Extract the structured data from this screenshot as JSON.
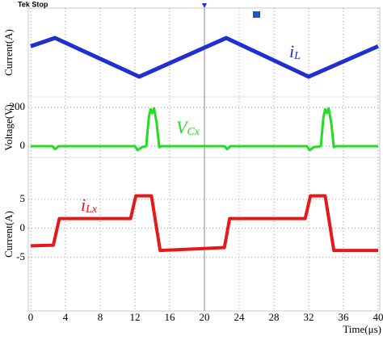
{
  "scope_status": "Tek Stop",
  "chart_data": [
    {
      "type": "line",
      "ylabel": "Current(A)",
      "label": {
        "main": "i",
        "sub": "L"
      },
      "color": "#1f2fd0",
      "xlim": [
        0,
        40
      ],
      "ylim": [
        -10,
        10
      ],
      "x": [
        0,
        2.8,
        12.5,
        22.5,
        32,
        40
      ],
      "values": [
        2.7,
        4.7,
        -4.7,
        4.7,
        -4.7,
        2.7
      ]
    },
    {
      "type": "line",
      "ylabel": "Voltage(V)",
      "label": {
        "main": "V",
        "sub": "Cx"
      },
      "color": "#22dd22",
      "xlim": [
        0,
        40
      ],
      "ylim": [
        -58,
        254
      ],
      "yticks": [
        0,
        200
      ],
      "x": [
        0,
        2.5,
        2.8,
        3.2,
        12.0,
        12.3,
        12.8,
        13.3,
        13.6,
        13.8,
        14.0,
        14.2,
        14.5,
        14.8,
        15.0,
        22.3,
        22.6,
        23.0,
        31.8,
        32.1,
        32.6,
        33.4,
        33.7,
        33.9,
        34.1,
        34.3,
        34.6,
        34.9,
        35.1,
        40
      ],
      "values": [
        0,
        0,
        -15,
        0,
        0,
        -20,
        -5,
        0,
        150,
        190,
        170,
        195,
        120,
        -5,
        0,
        0,
        -15,
        0,
        0,
        -20,
        -5,
        0,
        150,
        190,
        170,
        195,
        120,
        -5,
        0,
        0
      ]
    },
    {
      "type": "line",
      "ylabel": "Current(A)",
      "label": {
        "main": "i",
        "sub": "Lx"
      },
      "color": "#e81818",
      "xlim": [
        0,
        40
      ],
      "ylim": [
        -14.2,
        12.2
      ],
      "yticks": [
        -5,
        0,
        5
      ],
      "xticks": [
        0,
        4,
        8,
        12,
        16,
        20,
        24,
        28,
        32,
        36,
        40
      ],
      "xlabel": "Time(μs)",
      "x": [
        0,
        2.6,
        3.3,
        11.5,
        12.1,
        13.9,
        14.9,
        22.3,
        22.9,
        31.6,
        32.2,
        33.9,
        34.9,
        40
      ],
      "values": [
        -3.0,
        -2.9,
        1.7,
        1.7,
        5.6,
        5.6,
        -3.8,
        -3.3,
        1.7,
        1.7,
        5.6,
        5.6,
        -3.8,
        -3.8
      ]
    }
  ]
}
